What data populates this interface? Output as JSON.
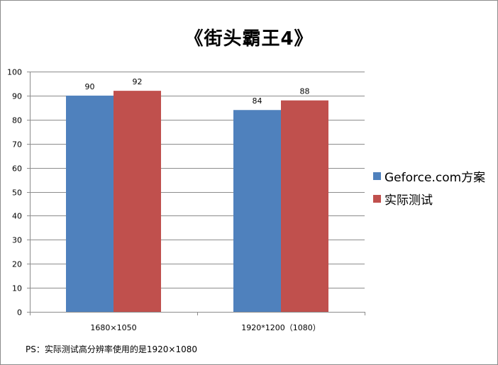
{
  "chart_data": {
    "type": "bar",
    "title": "《街头霸王4》",
    "categories": [
      "1680×1050",
      "1920*1200（1080）"
    ],
    "series": [
      {
        "name": "Geforce.com方案",
        "values": [
          90,
          84
        ],
        "color": "#4f81bd"
      },
      {
        "name": "实际测试",
        "values": [
          92,
          88
        ],
        "color": "#c0504d"
      }
    ],
    "ylim": [
      0,
      100
    ],
    "yticks": [
      0,
      10,
      20,
      30,
      40,
      50,
      60,
      70,
      80,
      90,
      100
    ],
    "grid": true,
    "legend_position": "right",
    "data_labels": true
  },
  "note": "PS：实际测试高分辨率使用的是1920×1080"
}
